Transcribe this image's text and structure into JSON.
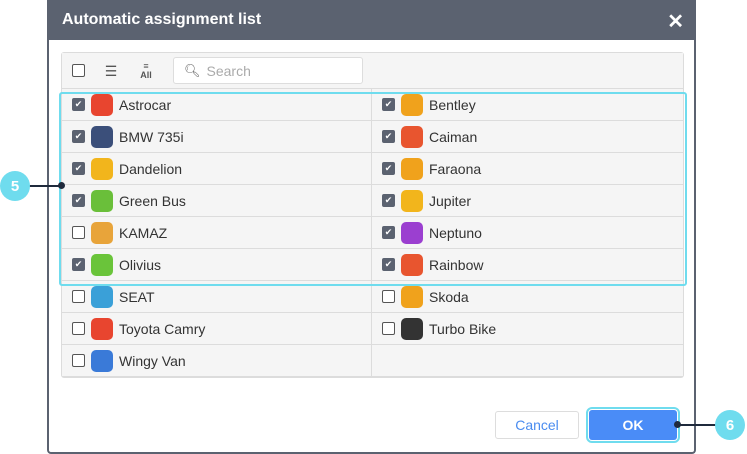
{
  "dialog": {
    "title": "Automatic assignment list",
    "close_icon": "close-icon"
  },
  "toolbar": {
    "search_placeholder": "Search",
    "all_label": "All"
  },
  "units": [
    {
      "name": "Astrocar",
      "checked": true,
      "color": "#e8452f"
    },
    {
      "name": "Bentley",
      "checked": true,
      "color": "#f0a21c"
    },
    {
      "name": "BMW 735i",
      "checked": true,
      "color": "#3b4f7a"
    },
    {
      "name": "Caiman",
      "checked": true,
      "color": "#e8552f"
    },
    {
      "name": "Dandelion",
      "checked": true,
      "color": "#f2b51c"
    },
    {
      "name": "Faraona",
      "checked": true,
      "color": "#f0a21c"
    },
    {
      "name": "Green Bus",
      "checked": true,
      "color": "#6abf3a"
    },
    {
      "name": "Jupiter",
      "checked": true,
      "color": "#f2b51c"
    },
    {
      "name": "KAMAZ",
      "checked": false,
      "color": "#e8a43a"
    },
    {
      "name": "Neptuno",
      "checked": true,
      "color": "#9b3fd0"
    },
    {
      "name": "Olivius",
      "checked": true,
      "color": "#6ac43a"
    },
    {
      "name": "Rainbow",
      "checked": true,
      "color": "#e8552f"
    },
    {
      "name": "SEAT",
      "checked": false,
      "color": "#3aa0d8"
    },
    {
      "name": "Skoda",
      "checked": false,
      "color": "#f0a21c"
    },
    {
      "name": "Toyota Camry",
      "checked": false,
      "color": "#e8452f"
    },
    {
      "name": "Turbo Bike",
      "checked": false,
      "color": "#333333"
    },
    {
      "name": "Wingy Van",
      "checked": false,
      "color": "#3a7ad8"
    }
  ],
  "buttons": {
    "cancel": "Cancel",
    "ok": "OK"
  },
  "callouts": {
    "list": "5",
    "ok": "6"
  }
}
